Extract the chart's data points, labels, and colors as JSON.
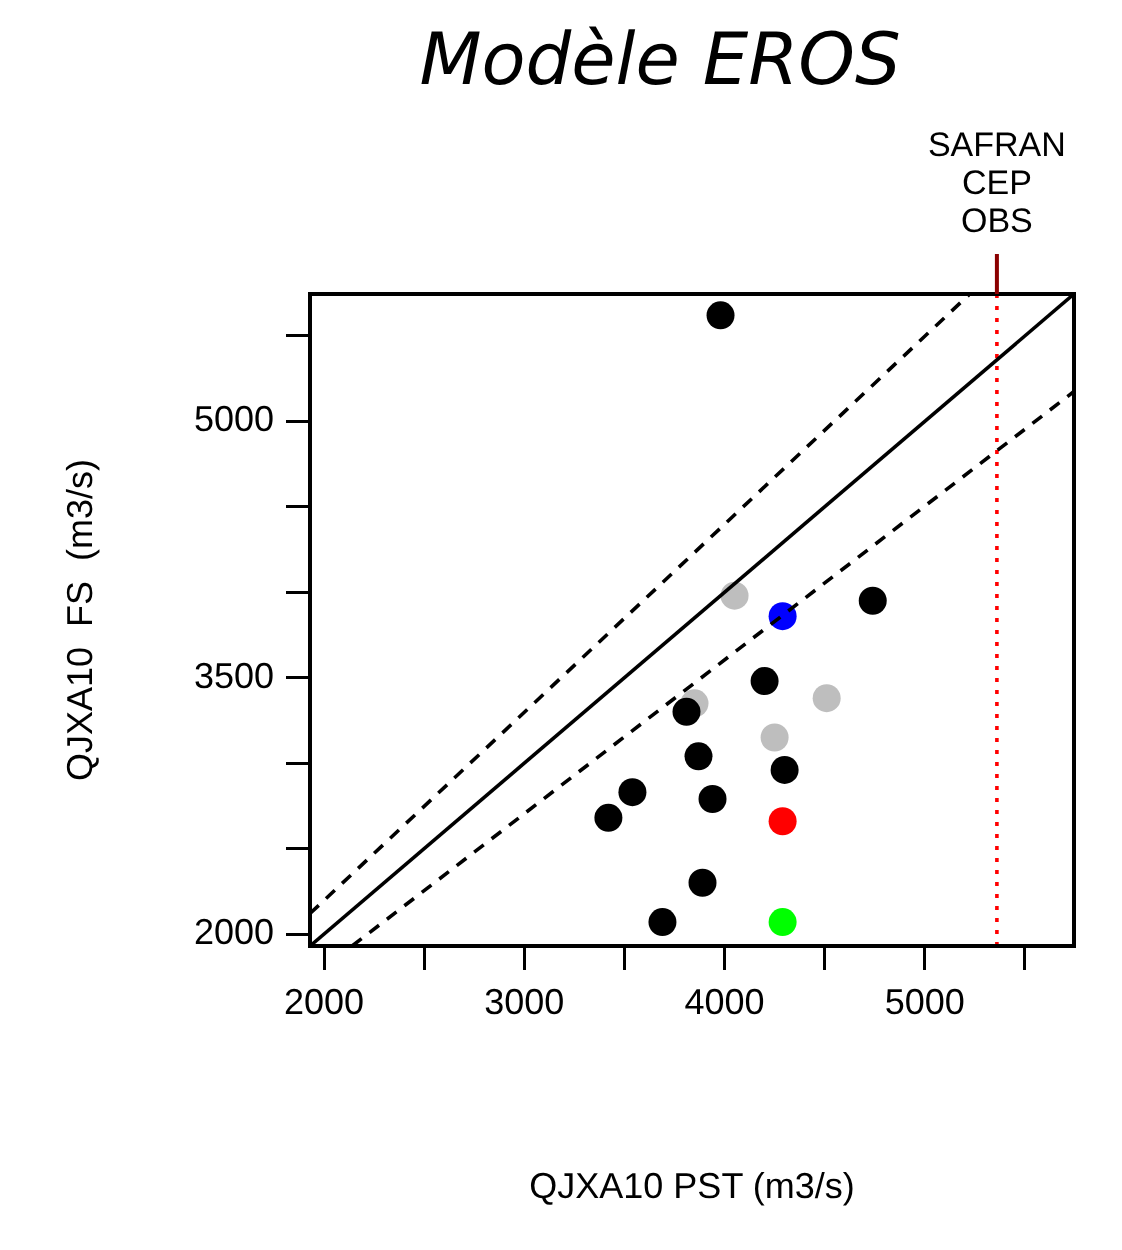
{
  "chart_data": {
    "type": "scatter",
    "title": "Modèle EROS",
    "xlabel": "QJXA10 PST (m3/s)",
    "ylabel": "QJXA10  FS  (m3/s)",
    "marker": "circle",
    "grid": false,
    "xlim": [
      1930,
      5745
    ],
    "ylim": [
      1930,
      5745
    ],
    "xticks": [
      2000,
      {
        "value": 2500,
        "label": null
      },
      3000,
      {
        "value": 3500,
        "label": null
      },
      4000,
      {
        "value": 4500,
        "label": null
      },
      5000,
      {
        "value": 5500,
        "label": null
      }
    ],
    "yticks": [
      2000,
      {
        "value": 2500,
        "label": null
      },
      {
        "value": 3000,
        "label": null
      },
      3500,
      {
        "value": 4000,
        "label": null
      },
      {
        "value": 4500,
        "label": null
      },
      5000,
      {
        "value": 5500,
        "label": null
      }
    ],
    "series": [
      {
        "type": "line",
        "color": "#000000",
        "line_style": "solid",
        "marker": "none",
        "x": [
          1930,
          5740
        ],
        "values": [
          1930,
          5740
        ]
      },
      {
        "type": "line",
        "color": "#000000",
        "line_style": "dashed",
        "marker": "none",
        "x": [
          1930,
          5220
        ],
        "values": [
          2120,
          5740
        ]
      },
      {
        "type": "line",
        "color": "#000000",
        "line_style": "dashed",
        "marker": "none",
        "x": [
          2140,
          5740
        ],
        "values": [
          1930,
          5170
        ]
      },
      {
        "color": "#000000",
        "x": [
          3980,
          4740,
          4200,
          3810,
          3870,
          4300,
          3540,
          3420,
          3940,
          3890,
          3690
        ],
        "values": [
          5620,
          3950,
          3480,
          3300,
          3040,
          2960,
          2830,
          2680,
          2790,
          2300,
          2070
        ]
      },
      {
        "color": "#bebebe",
        "x": [
          4050,
          3850,
          4510,
          4250
        ],
        "values": [
          3980,
          3350,
          3380,
          3150
        ]
      },
      {
        "color": "#0000ff",
        "x": [
          4290
        ],
        "values": [
          3860
        ]
      },
      {
        "color": "#ff0000",
        "x": [
          4290
        ],
        "values": [
          2660
        ]
      },
      {
        "color": "#00ff00",
        "x": [
          4290
        ],
        "values": [
          2070
        ]
      }
    ],
    "ref_lines": [
      {
        "axis": "x",
        "value": 5360,
        "color": "#ff0000",
        "line_style": "dotted"
      }
    ],
    "annotations": [
      "SAFRAN",
      "CEP",
      "OBS"
    ]
  }
}
